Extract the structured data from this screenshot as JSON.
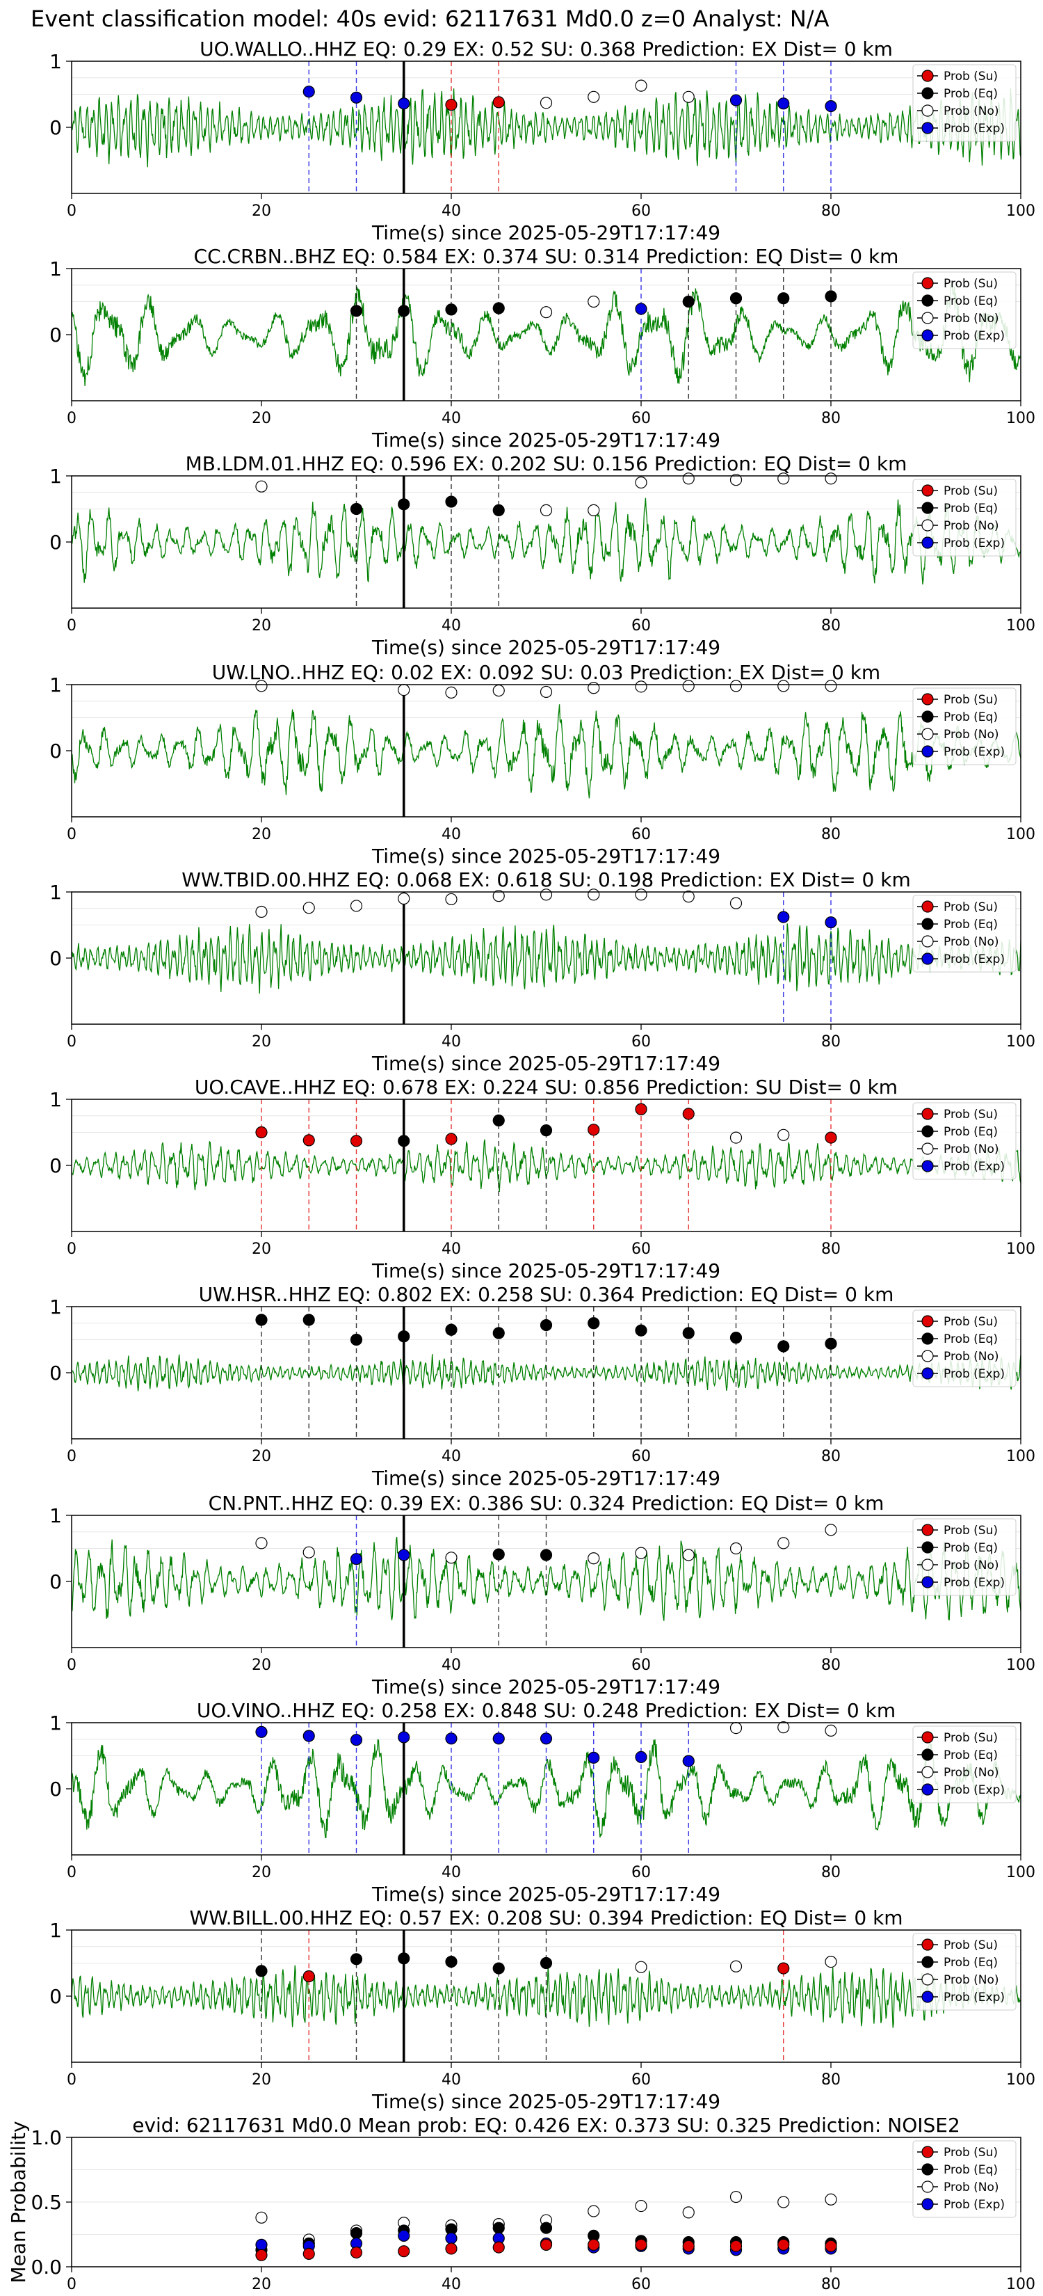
{
  "figure": {
    "suptitle": "Event classification model: 40s evid: 62117631 Md0.0 z=0 Analyst: N/A"
  },
  "legend_labels": [
    "Prob (Su)",
    "Prob (Eq)",
    "Prob (No)",
    "Prob (Exp)"
  ],
  "colors": {
    "su": "#e00000",
    "eq": "#000000",
    "no": "#ffffff",
    "exp": "#0000e0",
    "waveform": "#008000"
  },
  "chart_data": [
    {
      "type": "line",
      "title": "UO.WALLO..HHZ   EQ: 0.29   EX: 0.52   SU: 0.368   Prediction: EX    Dist= 0 km",
      "xlabel": "Time(s) since 2025-05-29T17:17:49",
      "xlim": [
        0,
        100
      ],
      "ylim": [
        -1,
        1
      ],
      "xticks": [
        0,
        20,
        40,
        60,
        80,
        100
      ],
      "yticks": [
        0,
        1
      ],
      "event_line_x": 35,
      "amp": 0.55,
      "freq": 3.0,
      "waveform_note": "seismic trace",
      "points": [
        {
          "x": 25,
          "y": 0.54,
          "class": "exp"
        },
        {
          "x": 30,
          "y": 0.45,
          "class": "exp"
        },
        {
          "x": 35,
          "y": 0.36,
          "class": "exp"
        },
        {
          "x": 40,
          "y": 0.34,
          "class": "su"
        },
        {
          "x": 45,
          "y": 0.38,
          "class": "su"
        },
        {
          "x": 50,
          "y": 0.37,
          "class": "no"
        },
        {
          "x": 55,
          "y": 0.46,
          "class": "no"
        },
        {
          "x": 60,
          "y": 0.63,
          "class": "no"
        },
        {
          "x": 65,
          "y": 0.46,
          "class": "no"
        },
        {
          "x": 70,
          "y": 0.41,
          "class": "exp"
        },
        {
          "x": 75,
          "y": 0.36,
          "class": "exp"
        },
        {
          "x": 80,
          "y": 0.32,
          "class": "exp"
        }
      ]
    },
    {
      "type": "line",
      "title": "CC.CRBN..BHZ   EQ: 0.584   EX: 0.374   SU: 0.314   Prediction: EQ    Dist= 0 km",
      "xlabel": "Time(s) since 2025-05-29T17:17:49",
      "xlim": [
        0,
        100
      ],
      "ylim": [
        -1,
        1
      ],
      "xticks": [
        0,
        20,
        40,
        60,
        80,
        100
      ],
      "yticks": [
        0,
        1
      ],
      "event_line_x": 35,
      "amp": 0.7,
      "freq": 0.45,
      "points": [
        {
          "x": 30,
          "y": 0.36,
          "class": "eq"
        },
        {
          "x": 35,
          "y": 0.36,
          "class": "eq"
        },
        {
          "x": 40,
          "y": 0.38,
          "class": "eq"
        },
        {
          "x": 45,
          "y": 0.4,
          "class": "eq"
        },
        {
          "x": 50,
          "y": 0.34,
          "class": "no"
        },
        {
          "x": 55,
          "y": 0.5,
          "class": "no"
        },
        {
          "x": 60,
          "y": 0.39,
          "class": "exp"
        },
        {
          "x": 65,
          "y": 0.5,
          "class": "eq"
        },
        {
          "x": 70,
          "y": 0.55,
          "class": "eq"
        },
        {
          "x": 75,
          "y": 0.55,
          "class": "eq"
        },
        {
          "x": 80,
          "y": 0.58,
          "class": "eq"
        }
      ]
    },
    {
      "type": "line",
      "title": "MB.LDM.01.HHZ   EQ: 0.596   EX: 0.202   SU: 0.156   Prediction: EQ    Dist= 0 km",
      "xlabel": "Time(s) since 2025-05-29T17:17:49",
      "xlim": [
        0,
        100
      ],
      "ylim": [
        -1,
        1
      ],
      "xticks": [
        0,
        20,
        40,
        60,
        80,
        100
      ],
      "yticks": [
        0,
        1
      ],
      "event_line_x": 35,
      "amp": 0.6,
      "freq": 1.2,
      "points": [
        {
          "x": 20,
          "y": 0.84,
          "class": "no"
        },
        {
          "x": 30,
          "y": 0.5,
          "class": "eq"
        },
        {
          "x": 35,
          "y": 0.57,
          "class": "eq"
        },
        {
          "x": 40,
          "y": 0.61,
          "class": "eq"
        },
        {
          "x": 45,
          "y": 0.48,
          "class": "eq"
        },
        {
          "x": 50,
          "y": 0.48,
          "class": "no"
        },
        {
          "x": 55,
          "y": 0.48,
          "class": "no"
        },
        {
          "x": 60,
          "y": 0.9,
          "class": "no"
        },
        {
          "x": 65,
          "y": 0.96,
          "class": "no"
        },
        {
          "x": 70,
          "y": 0.94,
          "class": "no"
        },
        {
          "x": 75,
          "y": 0.96,
          "class": "no"
        },
        {
          "x": 80,
          "y": 0.96,
          "class": "no"
        }
      ]
    },
    {
      "type": "line",
      "title": "UW.LNO..HHZ   EQ: 0.02   EX: 0.092   SU: 0.03   Prediction: EX    Dist= 0 km",
      "xlabel": "Time(s) since 2025-05-29T17:17:49",
      "xlim": [
        0,
        100
      ],
      "ylim": [
        -1,
        1
      ],
      "xticks": [
        0,
        20,
        40,
        60,
        80,
        100
      ],
      "yticks": [
        0,
        1
      ],
      "event_line_x": 35,
      "amp": 0.65,
      "freq": 1.0,
      "points": [
        {
          "x": 20,
          "y": 0.98,
          "class": "no"
        },
        {
          "x": 35,
          "y": 0.92,
          "class": "no"
        },
        {
          "x": 40,
          "y": 0.88,
          "class": "no"
        },
        {
          "x": 45,
          "y": 0.91,
          "class": "no"
        },
        {
          "x": 50,
          "y": 0.89,
          "class": "no"
        },
        {
          "x": 55,
          "y": 0.95,
          "class": "no"
        },
        {
          "x": 60,
          "y": 0.97,
          "class": "no"
        },
        {
          "x": 65,
          "y": 0.98,
          "class": "no"
        },
        {
          "x": 70,
          "y": 0.98,
          "class": "no"
        },
        {
          "x": 75,
          "y": 0.98,
          "class": "no"
        },
        {
          "x": 80,
          "y": 0.98,
          "class": "no"
        }
      ]
    },
    {
      "type": "line",
      "title": "WW.TBID.00.HHZ   EQ: 0.068   EX: 0.618   SU: 0.198   Prediction: EX    Dist= 0 km",
      "xlabel": "Time(s) since 2025-05-29T17:17:49",
      "xlim": [
        0,
        100
      ],
      "ylim": [
        -1,
        1
      ],
      "xticks": [
        0,
        20,
        40,
        60,
        80,
        100
      ],
      "yticks": [
        0,
        1
      ],
      "event_line_x": 35,
      "amp": 0.5,
      "freq": 3.0,
      "points": [
        {
          "x": 20,
          "y": 0.7,
          "class": "no"
        },
        {
          "x": 25,
          "y": 0.76,
          "class": "no"
        },
        {
          "x": 30,
          "y": 0.79,
          "class": "no"
        },
        {
          "x": 35,
          "y": 0.9,
          "class": "no"
        },
        {
          "x": 40,
          "y": 0.89,
          "class": "no"
        },
        {
          "x": 45,
          "y": 0.94,
          "class": "no"
        },
        {
          "x": 50,
          "y": 0.96,
          "class": "no"
        },
        {
          "x": 55,
          "y": 0.96,
          "class": "no"
        },
        {
          "x": 60,
          "y": 0.96,
          "class": "no"
        },
        {
          "x": 65,
          "y": 0.93,
          "class": "no"
        },
        {
          "x": 70,
          "y": 0.83,
          "class": "no"
        },
        {
          "x": 75,
          "y": 0.62,
          "class": "exp"
        },
        {
          "x": 80,
          "y": 0.54,
          "class": "exp"
        }
      ]
    },
    {
      "type": "line",
      "title": "UO.CAVE..HHZ   EQ: 0.678   EX: 0.224   SU: 0.856   Prediction: SU    Dist= 0 km",
      "xlabel": "Time(s) since 2025-05-29T17:17:49",
      "xlim": [
        0,
        100
      ],
      "ylim": [
        -1,
        1
      ],
      "xticks": [
        0,
        20,
        40,
        60,
        80,
        100
      ],
      "yticks": [
        0,
        1
      ],
      "event_line_x": 35,
      "amp": 0.35,
      "freq": 2.0,
      "points": [
        {
          "x": 20,
          "y": 0.5,
          "class": "su"
        },
        {
          "x": 25,
          "y": 0.38,
          "class": "su"
        },
        {
          "x": 30,
          "y": 0.37,
          "class": "su"
        },
        {
          "x": 35,
          "y": 0.37,
          "class": "eq"
        },
        {
          "x": 40,
          "y": 0.4,
          "class": "su"
        },
        {
          "x": 45,
          "y": 0.68,
          "class": "eq"
        },
        {
          "x": 50,
          "y": 0.53,
          "class": "eq"
        },
        {
          "x": 55,
          "y": 0.54,
          "class": "su"
        },
        {
          "x": 60,
          "y": 0.85,
          "class": "su"
        },
        {
          "x": 65,
          "y": 0.78,
          "class": "su"
        },
        {
          "x": 70,
          "y": 0.42,
          "class": "no"
        },
        {
          "x": 75,
          "y": 0.46,
          "class": "no"
        },
        {
          "x": 80,
          "y": 0.42,
          "class": "su"
        }
      ]
    },
    {
      "type": "line",
      "title": "UW.HSR..HHZ   EQ: 0.802   EX: 0.258   SU: 0.364   Prediction: EQ    Dist= 0 km",
      "xlabel": "Time(s) since 2025-05-29T17:17:49",
      "xlim": [
        0,
        100
      ],
      "ylim": [
        -1,
        1
      ],
      "xticks": [
        0,
        20,
        40,
        60,
        80,
        100
      ],
      "yticks": [
        0,
        1
      ],
      "event_line_x": 35,
      "amp": 0.25,
      "freq": 3.0,
      "points": [
        {
          "x": 20,
          "y": 0.8,
          "class": "eq"
        },
        {
          "x": 25,
          "y": 0.8,
          "class": "eq"
        },
        {
          "x": 30,
          "y": 0.5,
          "class": "eq"
        },
        {
          "x": 35,
          "y": 0.55,
          "class": "eq"
        },
        {
          "x": 40,
          "y": 0.65,
          "class": "eq"
        },
        {
          "x": 45,
          "y": 0.6,
          "class": "eq"
        },
        {
          "x": 50,
          "y": 0.72,
          "class": "eq"
        },
        {
          "x": 55,
          "y": 0.75,
          "class": "eq"
        },
        {
          "x": 60,
          "y": 0.64,
          "class": "eq"
        },
        {
          "x": 65,
          "y": 0.6,
          "class": "eq"
        },
        {
          "x": 70,
          "y": 0.53,
          "class": "eq"
        },
        {
          "x": 75,
          "y": 0.4,
          "class": "eq"
        },
        {
          "x": 80,
          "y": 0.44,
          "class": "eq"
        }
      ]
    },
    {
      "type": "line",
      "title": "CN.PNT..HHZ   EQ: 0.39   EX: 0.386   SU: 0.324   Prediction: EQ    Dist= 0 km",
      "xlabel": "Time(s) since 2025-05-29T17:17:49",
      "xlim": [
        0,
        100
      ],
      "ylim": [
        -1,
        1
      ],
      "xticks": [
        0,
        20,
        40,
        60,
        80,
        100
      ],
      "yticks": [
        0,
        1
      ],
      "event_line_x": 35,
      "amp": 0.6,
      "freq": 1.6,
      "points": [
        {
          "x": 20,
          "y": 0.58,
          "class": "no"
        },
        {
          "x": 25,
          "y": 0.44,
          "class": "no"
        },
        {
          "x": 30,
          "y": 0.34,
          "class": "exp"
        },
        {
          "x": 35,
          "y": 0.4,
          "class": "exp"
        },
        {
          "x": 40,
          "y": 0.36,
          "class": "no"
        },
        {
          "x": 45,
          "y": 0.41,
          "class": "eq"
        },
        {
          "x": 50,
          "y": 0.4,
          "class": "eq"
        },
        {
          "x": 55,
          "y": 0.35,
          "class": "no"
        },
        {
          "x": 60,
          "y": 0.43,
          "class": "no"
        },
        {
          "x": 65,
          "y": 0.4,
          "class": "no"
        },
        {
          "x": 70,
          "y": 0.5,
          "class": "no"
        },
        {
          "x": 75,
          "y": 0.58,
          "class": "no"
        },
        {
          "x": 80,
          "y": 0.78,
          "class": "no"
        }
      ]
    },
    {
      "type": "line",
      "title": "UO.VINO..HHZ   EQ: 0.258   EX: 0.848   SU: 0.248   Prediction: EX    Dist= 0 km",
      "xlabel": "Time(s) since 2025-05-29T17:17:49",
      "xlim": [
        0,
        100
      ],
      "ylim": [
        -1,
        1
      ],
      "xticks": [
        0,
        20,
        40,
        60,
        80,
        100
      ],
      "yticks": [
        0,
        1
      ],
      "event_line_x": 35,
      "amp": 0.7,
      "freq": 0.55,
      "points": [
        {
          "x": 20,
          "y": 0.86,
          "class": "exp"
        },
        {
          "x": 25,
          "y": 0.8,
          "class": "exp"
        },
        {
          "x": 30,
          "y": 0.74,
          "class": "exp"
        },
        {
          "x": 35,
          "y": 0.78,
          "class": "exp"
        },
        {
          "x": 40,
          "y": 0.76,
          "class": "exp"
        },
        {
          "x": 45,
          "y": 0.76,
          "class": "exp"
        },
        {
          "x": 50,
          "y": 0.76,
          "class": "exp"
        },
        {
          "x": 55,
          "y": 0.47,
          "class": "exp"
        },
        {
          "x": 60,
          "y": 0.48,
          "class": "exp"
        },
        {
          "x": 65,
          "y": 0.42,
          "class": "exp"
        },
        {
          "x": 70,
          "y": 0.92,
          "class": "no"
        },
        {
          "x": 75,
          "y": 0.93,
          "class": "no"
        },
        {
          "x": 80,
          "y": 0.88,
          "class": "no"
        }
      ]
    },
    {
      "type": "line",
      "title": "WW.BILL.00.HHZ   EQ: 0.57   EX: 0.208   SU: 0.394   Prediction: EQ    Dist= 0 km",
      "xlabel": "Time(s) since 2025-05-29T17:17:49",
      "xlim": [
        0,
        100
      ],
      "ylim": [
        -1,
        1
      ],
      "xticks": [
        0,
        20,
        40,
        60,
        80,
        100
      ],
      "yticks": [
        0,
        1
      ],
      "event_line_x": 35,
      "amp": 0.45,
      "freq": 3.0,
      "points": [
        {
          "x": 20,
          "y": 0.38,
          "class": "eq"
        },
        {
          "x": 25,
          "y": 0.3,
          "class": "su"
        },
        {
          "x": 30,
          "y": 0.56,
          "class": "eq"
        },
        {
          "x": 35,
          "y": 0.57,
          "class": "eq"
        },
        {
          "x": 40,
          "y": 0.52,
          "class": "eq"
        },
        {
          "x": 45,
          "y": 0.42,
          "class": "eq"
        },
        {
          "x": 50,
          "y": 0.5,
          "class": "eq"
        },
        {
          "x": 60,
          "y": 0.44,
          "class": "no"
        },
        {
          "x": 70,
          "y": 0.45,
          "class": "no"
        },
        {
          "x": 75,
          "y": 0.42,
          "class": "su"
        },
        {
          "x": 80,
          "y": 0.52,
          "class": "no"
        }
      ]
    },
    {
      "type": "scatter",
      "title": "evid: 62117631   Md0.0    Mean prob:    EQ: 0.426   EX: 0.373   SU: 0.325    Prediction: NOISE2",
      "ylabel": "Mean Probability",
      "xlim": [
        0,
        100
      ],
      "ylim": [
        0,
        1
      ],
      "xticks": [
        0,
        20,
        40,
        60,
        80,
        100
      ],
      "yticks": [
        0.0,
        0.5,
        1.0
      ],
      "series": [
        {
          "name": "Prob (No)",
          "class": "no",
          "x": [
            20,
            25,
            30,
            35,
            40,
            45,
            50,
            55,
            60,
            65,
            70,
            75,
            80
          ],
          "y": [
            0.38,
            0.21,
            0.28,
            0.34,
            0.32,
            0.33,
            0.36,
            0.43,
            0.47,
            0.42,
            0.54,
            0.5,
            0.52
          ]
        },
        {
          "name": "Prob (Eq)",
          "class": "eq",
          "x": [
            20,
            25,
            30,
            35,
            40,
            45,
            50,
            55,
            60,
            65,
            70,
            75,
            80
          ],
          "y": [
            0.13,
            0.18,
            0.26,
            0.28,
            0.29,
            0.3,
            0.3,
            0.24,
            0.2,
            0.19,
            0.19,
            0.19,
            0.18
          ]
        },
        {
          "name": "Prob (Exp)",
          "class": "exp",
          "x": [
            20,
            25,
            30,
            35,
            40,
            45,
            50,
            55,
            60,
            65,
            70,
            75,
            80
          ],
          "y": [
            0.17,
            0.16,
            0.18,
            0.24,
            0.22,
            0.22,
            0.18,
            0.15,
            0.16,
            0.14,
            0.13,
            0.14,
            0.14
          ]
        },
        {
          "name": "Prob (Su)",
          "class": "su",
          "x": [
            20,
            25,
            30,
            35,
            40,
            45,
            50,
            55,
            60,
            65,
            70,
            75,
            80
          ],
          "y": [
            0.09,
            0.1,
            0.11,
            0.12,
            0.14,
            0.15,
            0.17,
            0.17,
            0.17,
            0.16,
            0.16,
            0.17,
            0.16
          ]
        }
      ]
    }
  ]
}
